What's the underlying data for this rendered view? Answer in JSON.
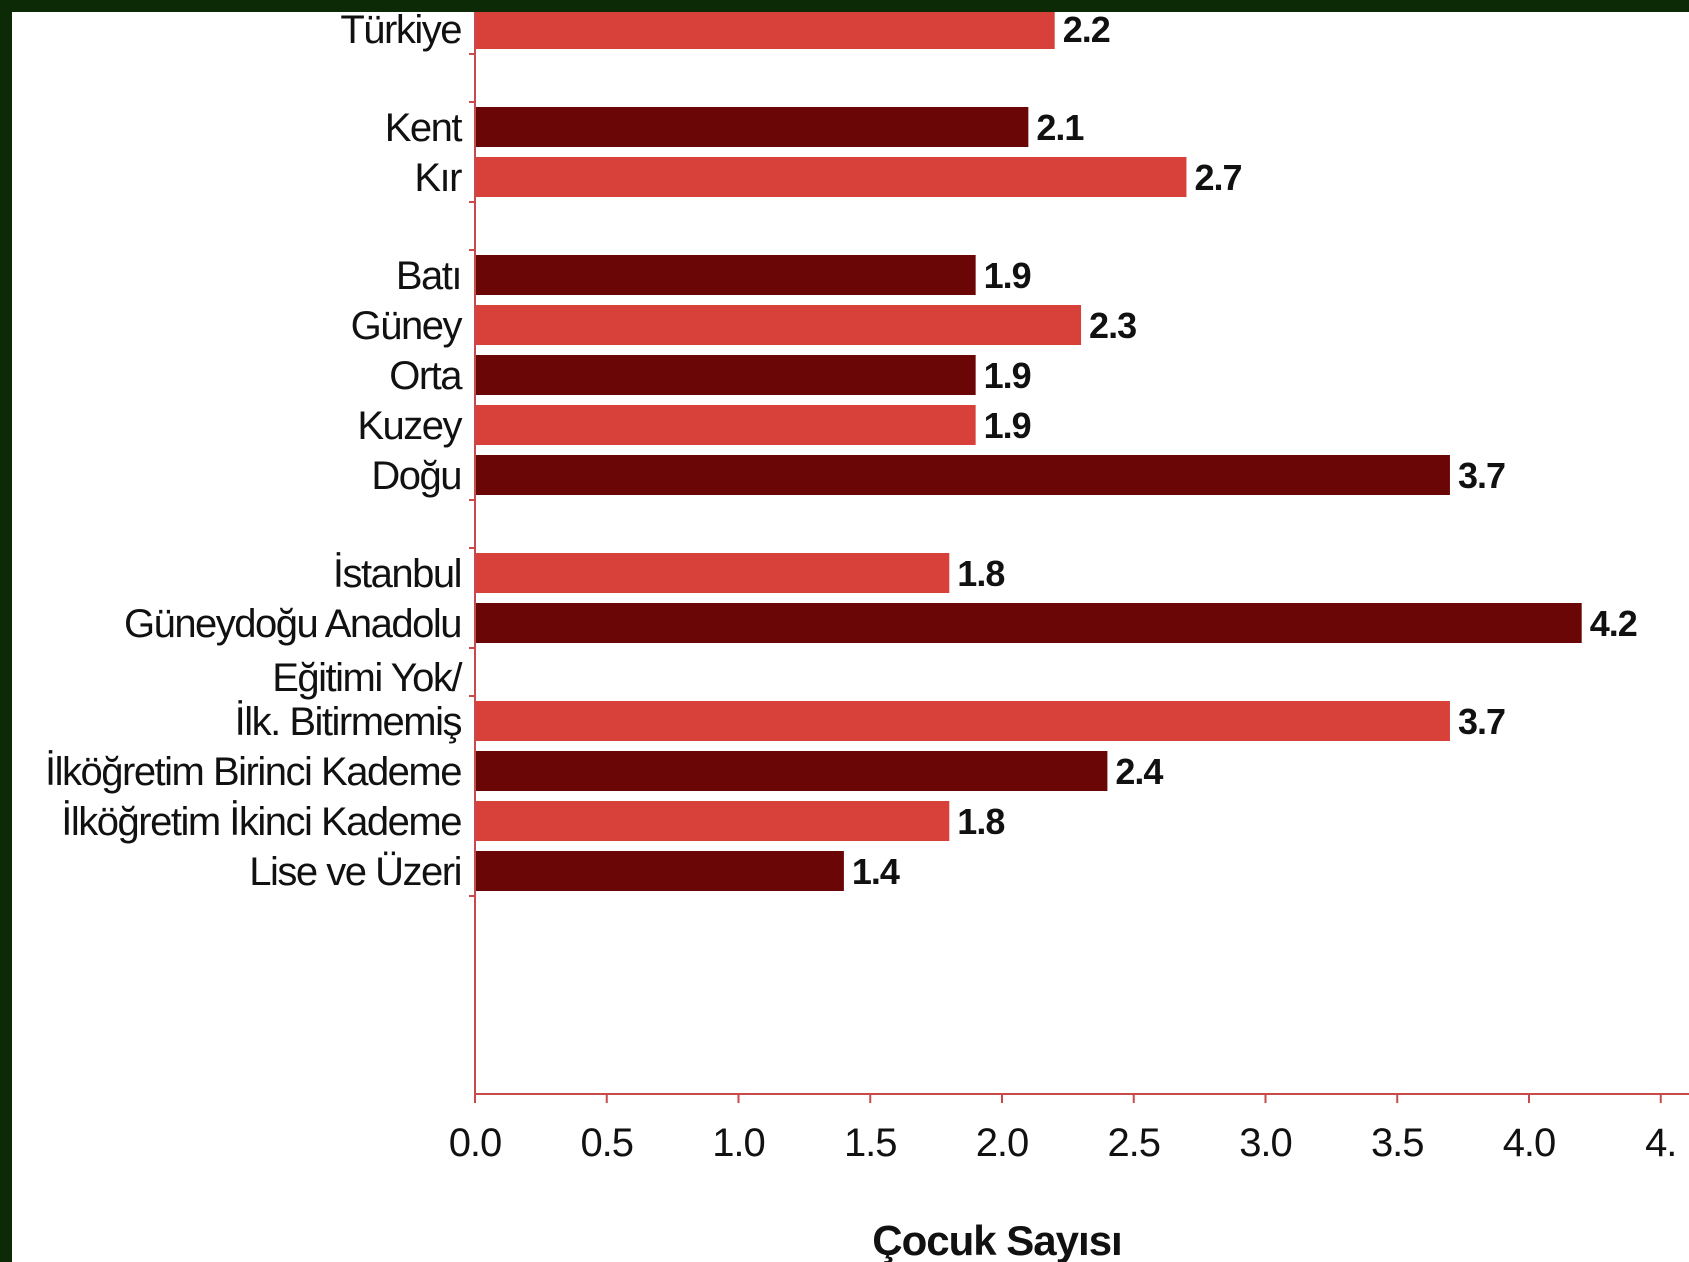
{
  "chart_data": {
    "type": "bar",
    "orientation": "horizontal",
    "xlabel": "Çocuk Sayısı",
    "xlim": [
      0,
      4.5
    ],
    "xticks": [
      "0.0",
      "0.5",
      "1.0",
      "1.5",
      "2.0",
      "2.5",
      "3.0",
      "3.5",
      "4.0",
      "4."
    ],
    "grid": false,
    "legend": "none",
    "colors": {
      "light": "#d8413a",
      "dark": "#6b0606",
      "axis": "#c94a4a"
    },
    "groups": [
      {
        "bars": [
          {
            "label": "Türkiye",
            "value": 2.2,
            "value_label": "2.2",
            "shade": "light"
          }
        ]
      },
      {
        "bars": [
          {
            "label": "Kent",
            "value": 2.1,
            "value_label": "2.1",
            "shade": "dark"
          },
          {
            "label": "Kır",
            "value": 2.7,
            "value_label": "2.7",
            "shade": "light"
          }
        ]
      },
      {
        "bars": [
          {
            "label": "Batı",
            "value": 1.9,
            "value_label": "1.9",
            "shade": "dark"
          },
          {
            "label": "Güney",
            "value": 2.3,
            "value_label": "2.3",
            "shade": "light"
          },
          {
            "label": "Orta",
            "value": 1.9,
            "value_label": "1.9",
            "shade": "dark"
          },
          {
            "label": "Kuzey",
            "value": 1.9,
            "value_label": "1.9",
            "shade": "light"
          },
          {
            "label": "Doğu",
            "value": 3.7,
            "value_label": "3.7",
            "shade": "dark"
          }
        ]
      },
      {
        "bars": [
          {
            "label": "İstanbul",
            "value": 1.8,
            "value_label": "1.8",
            "shade": "light"
          },
          {
            "label": "Güneydoğu Anadolu",
            "value": 4.2,
            "value_label": "4.2",
            "shade": "dark"
          }
        ]
      },
      {
        "bars": [
          {
            "label": "Eğitimi Yok/ İlk. Bitirmemiş",
            "label_lines": [
              "Eğitimi Yok/",
              "İlk. Bitirmemiş"
            ],
            "value": 3.7,
            "value_label": "3.7",
            "shade": "light"
          },
          {
            "label": "İlköğretim Birinci Kademe",
            "value": 2.4,
            "value_label": "2.4",
            "shade": "dark"
          },
          {
            "label": "İlköğretim İkinci Kademe",
            "value": 1.8,
            "value_label": "1.8",
            "shade": "light"
          },
          {
            "label": "Lise ve Üzeri",
            "value": 1.4,
            "value_label": "1.4",
            "shade": "dark"
          }
        ]
      }
    ]
  }
}
